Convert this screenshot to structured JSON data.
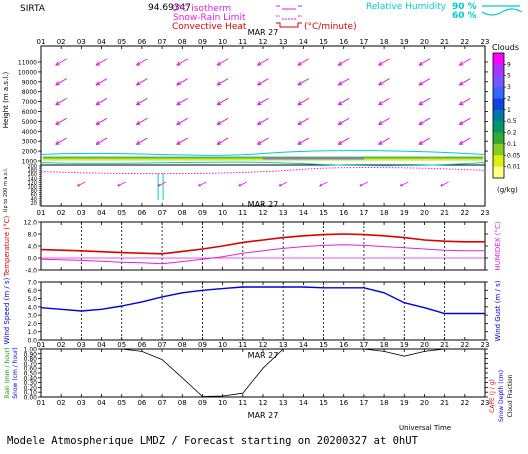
{
  "header": {
    "station": "SIRTA",
    "station_value": "94.69347",
    "zero_isotherm_label": "0°C isotherm",
    "snow_rain_label": "Snow-Rain Limit",
    "convective_label": "Convective Heat",
    "convective_unit": "(°C/minute)",
    "rh_label": "Relative Humidity",
    "rh_90": "90 %",
    "rh_60": "60 %"
  },
  "hours": [
    "01",
    "02",
    "03",
    "04",
    "05",
    "06",
    "07",
    "08",
    "09",
    "10",
    "11",
    "12",
    "13",
    "14",
    "15",
    "16",
    "17",
    "18",
    "19",
    "20",
    "21",
    "22",
    "23"
  ],
  "date_label": "MAR 27",
  "footer": {
    "universal_time": "Universal Time",
    "model_line": "Modele Atmospherique LMDZ / Forecast starting on 20200327 at 0hUT"
  },
  "colors": {
    "magenta": "#dd22dd",
    "red": "#dd0000",
    "blue": "#0000dd",
    "cyan": "#00cccc",
    "green": "#00aa00",
    "black": "#000000"
  },
  "chart_data": [
    {
      "type": "wind-profile",
      "panel": "height",
      "ylabel": "Height (m a.s.l.)",
      "ylabel_low": "Up to 200 m a.s.l.",
      "yticks_upper": [
        1000,
        2000,
        3000,
        4000,
        5000,
        6000,
        7000,
        8000,
        9000,
        10000,
        11000
      ],
      "yticks_lower": [
        10,
        20,
        30,
        40,
        50,
        60,
        70,
        80,
        90,
        100,
        110,
        120,
        130,
        140,
        150,
        160,
        170,
        180,
        190,
        200
      ],
      "yticks_lower_labels": [
        20,
        40,
        60,
        80,
        100,
        120,
        140,
        160,
        180,
        200
      ],
      "wind_levels": [
        1000,
        3000,
        5000,
        7000,
        9000,
        11000
      ],
      "zero_isotherm_m": 950,
      "snow_rain_limit_m": 700,
      "cloud_band_m": [
        1050,
        1450
      ],
      "clouds_colorbar": {
        "label": "Clouds",
        "unit": "(g/kg)",
        "ticks": [
          "9",
          "5",
          "3",
          "2",
          "1",
          "0.5",
          "0.2",
          "0.1",
          "0.05",
          "0.01"
        ],
        "colors": [
          "#ff00ff",
          "#aa33ff",
          "#7755ff",
          "#3366ff",
          "#1144dd",
          "#0077aa",
          "#009966",
          "#33aa33",
          "#88cc22",
          "#ddee11",
          "#ffff88"
        ]
      }
    },
    {
      "type": "line",
      "panel": "temperature",
      "ylabel": "Temperature (°C)",
      "ylabel_right": "HUMIDEX (°C)",
      "ylim": [
        -4,
        12
      ],
      "yticks": [
        "12.0",
        "8.0",
        "4.0",
        "0.0",
        "-4.0"
      ],
      "x": [
        1,
        2,
        3,
        4,
        5,
        6,
        7,
        8,
        9,
        10,
        11,
        12,
        13,
        14,
        15,
        16,
        17,
        18,
        19,
        20,
        21,
        22,
        23
      ],
      "series": [
        {
          "name": "temperature",
          "values": [
            2.8,
            2.6,
            2.4,
            2.1,
            1.8,
            1.6,
            1.4,
            2.2,
            3.0,
            4.0,
            5.2,
            6.0,
            6.8,
            7.4,
            7.8,
            8.0,
            7.8,
            7.4,
            6.8,
            6.0,
            5.6,
            5.4,
            5.4
          ]
        },
        {
          "name": "humidex",
          "values": [
            -0.4,
            -0.6,
            -0.8,
            -1.1,
            -1.4,
            -1.6,
            -1.9,
            -1.2,
            -0.4,
            0.4,
            1.6,
            2.4,
            3.2,
            3.8,
            4.2,
            4.4,
            4.2,
            3.8,
            3.4,
            3.0,
            2.6,
            2.4,
            2.4
          ]
        }
      ]
    },
    {
      "type": "line",
      "panel": "wind",
      "ylabel": "Wind Speed (m / s)",
      "ylabel_right": "Wind Gust (m / s)",
      "ylim": [
        0,
        7
      ],
      "yticks": [
        "7.0",
        "6.0",
        "5.0",
        "4.0",
        "3.0",
        "2.0",
        "1.0",
        "0.0"
      ],
      "x": [
        1,
        2,
        3,
        4,
        5,
        6,
        7,
        8,
        9,
        10,
        11,
        12,
        13,
        14,
        15,
        16,
        17,
        18,
        19,
        20,
        21,
        22,
        23
      ],
      "series": [
        {
          "name": "wind-speed",
          "values": [
            3.9,
            3.7,
            3.5,
            3.7,
            4.1,
            4.6,
            5.2,
            5.7,
            6.0,
            6.2,
            6.4,
            6.4,
            6.4,
            6.4,
            6.3,
            6.3,
            6.3,
            5.7,
            4.5,
            3.9,
            3.2,
            3.2,
            3.2
          ]
        }
      ]
    },
    {
      "type": "line",
      "panel": "precipitation",
      "ylabel": "Rain (mm / hour)",
      "ylabel_snow": "Snow (cm / hour)",
      "ylabel_right1": "CAPE (J / g)",
      "ylabel_right2": "Snow Depth (cm)",
      "ylabel_right3": "Cloud Fraction",
      "ylim": [
        0,
        1
      ],
      "yticks": [
        "1.00",
        "0.90",
        "0.80",
        "0.70",
        "0.60",
        "0.50",
        "0.40",
        "0.30",
        "0.20",
        "0.10",
        "0.00"
      ],
      "x": [
        1,
        2,
        3,
        4,
        5,
        6,
        7,
        8,
        9,
        10,
        11,
        12,
        13,
        14,
        15,
        16,
        17,
        18,
        19,
        20,
        21,
        22,
        23
      ],
      "series": [
        {
          "name": "cloud-fraction",
          "values": [
            1,
            1,
            1,
            1,
            1,
            0.95,
            0.78,
            0.4,
            0.01,
            0.02,
            0.08,
            0.6,
            1,
            1,
            1,
            1,
            1,
            0.95,
            0.85,
            0.95,
            1,
            1,
            1
          ]
        }
      ]
    }
  ]
}
